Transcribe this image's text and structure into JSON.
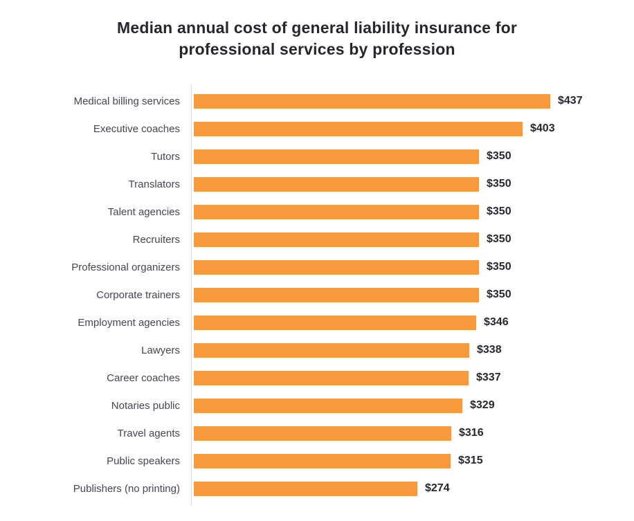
{
  "title": "Median annual cost of general liability insurance for\nprofessional services by profession",
  "chart_data": {
    "type": "bar",
    "orientation": "horizontal",
    "title": "Median annual cost of general liability insurance for professional services by profession",
    "categories": [
      "Medical billing services",
      "Executive coaches",
      "Tutors",
      "Translators",
      "Talent agencies",
      "Recruiters",
      "Professional organizers",
      "Corporate trainers",
      "Employment agencies",
      "Lawyers",
      "Career coaches",
      "Notaries public",
      "Travel agents",
      "Public speakers",
      "Publishers (no printing)"
    ],
    "values": [
      437,
      403,
      350,
      350,
      350,
      350,
      350,
      350,
      346,
      338,
      337,
      329,
      316,
      315,
      274
    ],
    "value_prefix": "$",
    "xlabel": "",
    "ylabel": "",
    "xlim": [
      0,
      540
    ],
    "grid": false,
    "legend": false,
    "data_labels": [
      "$437",
      "$403",
      "$350",
      "$350",
      "$350",
      "$350",
      "$350",
      "$350",
      "$346",
      "$338",
      "$337",
      "$329",
      "$316",
      "$315",
      "$274"
    ]
  },
  "colors": {
    "bar": "#F9993E",
    "title_text": "#26262E",
    "category_text": "#46464F",
    "value_text": "#26262E",
    "axis_line": "#D9D9D9",
    "background": "#FFFFFF"
  }
}
